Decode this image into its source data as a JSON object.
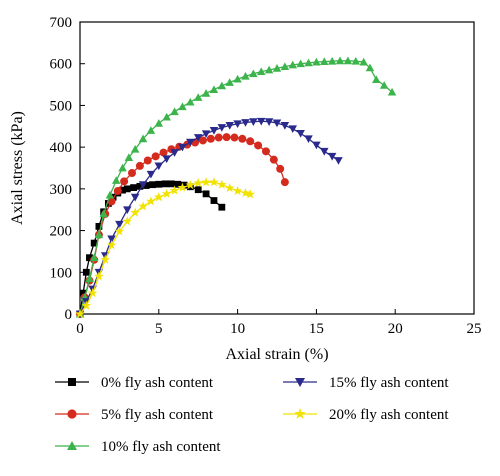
{
  "chart_data": {
    "type": "line",
    "xlabel": "Axial strain (%)",
    "ylabel": "Axial stress (kPa)",
    "xlim": [
      0,
      25
    ],
    "ylim": [
      0,
      700
    ],
    "xticks": [
      0,
      5,
      10,
      15,
      20,
      25
    ],
    "yticks": [
      0,
      100,
      200,
      300,
      400,
      500,
      600,
      700
    ],
    "grid": false,
    "legend_position": "bottom",
    "series": [
      {
        "name": "0% fly ash content",
        "color": "#000000",
        "marker": "square",
        "x": [
          0,
          0.2,
          0.4,
          0.6,
          0.9,
          1.2,
          1.5,
          1.8,
          2.1,
          2.4,
          2.7,
          3.0,
          3.4,
          3.8,
          4.2,
          4.6,
          5.0,
          5.4,
          5.8,
          6.2,
          6.6,
          7.0,
          7.5,
          8.0,
          8.5,
          9.0
        ],
        "y": [
          0,
          50,
          100,
          135,
          170,
          210,
          245,
          265,
          280,
          290,
          297,
          300,
          303,
          306,
          308,
          310,
          311,
          312,
          312,
          311,
          309,
          305,
          298,
          288,
          272,
          256
        ]
      },
      {
        "name": "5% fly ash content",
        "color": "#d42b1e",
        "marker": "circle",
        "x": [
          0,
          0.3,
          0.6,
          0.9,
          1.2,
          1.6,
          2.0,
          2.4,
          2.8,
          3.3,
          3.8,
          4.3,
          4.8,
          5.3,
          5.8,
          6.3,
          6.8,
          7.3,
          7.8,
          8.3,
          8.8,
          9.3,
          9.8,
          10.3,
          10.8,
          11.3,
          11.8,
          12.3,
          12.7,
          13.0
        ],
        "y": [
          0,
          40,
          80,
          130,
          190,
          240,
          270,
          295,
          318,
          338,
          355,
          368,
          378,
          387,
          395,
          401,
          406,
          411,
          416,
          420,
          423,
          424,
          423,
          420,
          414,
          404,
          390,
          370,
          348,
          316
        ]
      },
      {
        "name": "10% fly ash content",
        "color": "#3cb44b",
        "marker": "triangle-up",
        "x": [
          0,
          0.3,
          0.6,
          0.9,
          1.2,
          1.5,
          1.9,
          2.3,
          2.7,
          3.1,
          3.5,
          4.0,
          4.5,
          5.0,
          5.5,
          6.0,
          6.5,
          7.0,
          7.5,
          8.0,
          8.5,
          9.0,
          9.5,
          10.0,
          10.5,
          11.0,
          11.5,
          12.0,
          12.5,
          13.0,
          13.5,
          14.0,
          14.5,
          15.0,
          15.5,
          16.0,
          16.5,
          17.0,
          17.5,
          18.0,
          18.4,
          18.8,
          19.3,
          19.8
        ],
        "y": [
          0,
          40,
          85,
          135,
          190,
          240,
          285,
          320,
          350,
          375,
          395,
          420,
          440,
          457,
          472,
          485,
          497,
          508,
          519,
          529,
          538,
          547,
          555,
          563,
          570,
          576,
          581,
          585,
          589,
          593,
          597,
          600,
          602,
          604,
          605,
          606,
          607,
          607,
          606,
          604,
          590,
          562,
          548,
          532
        ]
      },
      {
        "name": "15% fly ash content",
        "color": "#2a2a8c",
        "marker": "triangle-down",
        "x": [
          0,
          0.4,
          0.8,
          1.2,
          1.6,
          2.0,
          2.5,
          3.0,
          3.5,
          4.0,
          4.5,
          5.0,
          5.5,
          6.0,
          6.5,
          7.0,
          7.5,
          8.0,
          8.5,
          9.0,
          9.5,
          10.0,
          10.5,
          11.0,
          11.5,
          12.0,
          12.5,
          13.0,
          13.5,
          14.0,
          14.5,
          15.0,
          15.5,
          16.0,
          16.4
        ],
        "y": [
          0,
          30,
          60,
          100,
          140,
          180,
          215,
          250,
          280,
          310,
          335,
          355,
          372,
          387,
          400,
          412,
          423,
          432,
          440,
          447,
          452,
          456,
          459,
          461,
          462,
          461,
          458,
          452,
          444,
          433,
          420,
          405,
          390,
          378,
          368
        ]
      },
      {
        "name": "20% fly ash content",
        "color": "#f2e200",
        "marker": "star",
        "x": [
          0,
          0.4,
          0.8,
          1.2,
          1.6,
          2.0,
          2.5,
          3.0,
          3.5,
          4.0,
          4.5,
          5.0,
          5.5,
          6.0,
          6.5,
          7.0,
          7.5,
          8.0,
          8.5,
          9.0,
          9.5,
          10.0,
          10.5,
          10.8
        ],
        "y": [
          0,
          20,
          50,
          90,
          130,
          165,
          198,
          222,
          243,
          258,
          270,
          280,
          288,
          296,
          303,
          309,
          314,
          316,
          316,
          310,
          302,
          295,
          290,
          287
        ]
      }
    ]
  }
}
